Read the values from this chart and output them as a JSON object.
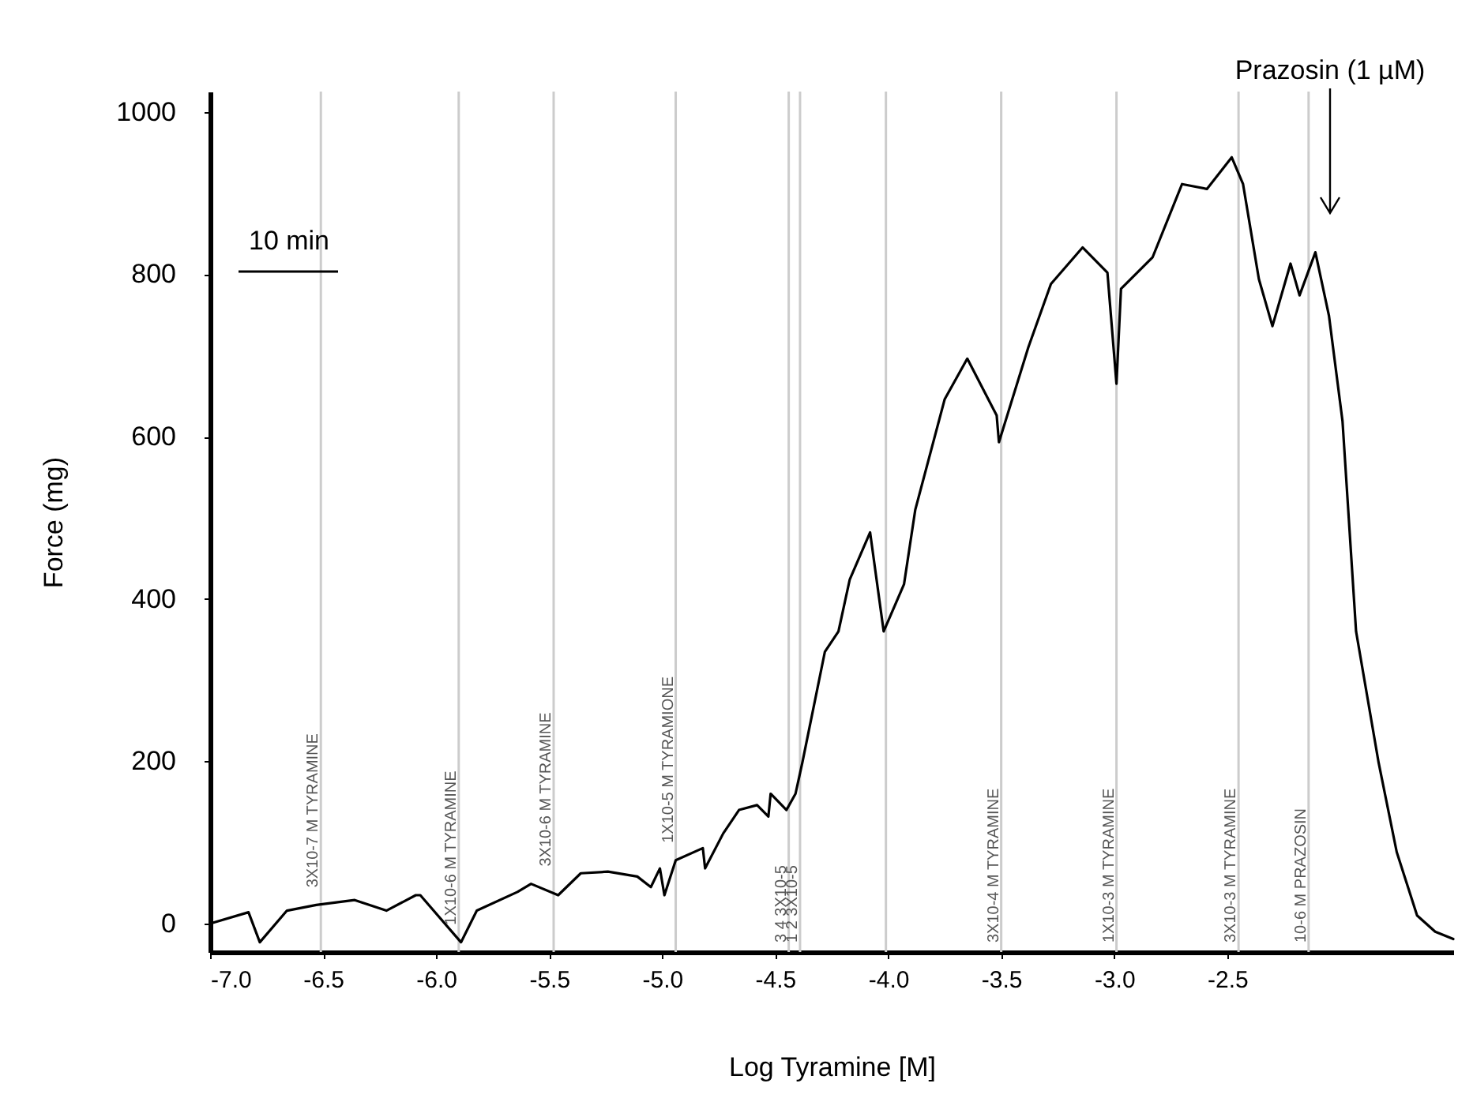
{
  "chart_data": {
    "type": "line",
    "xlabel": "Log Tyramine [M]",
    "ylabel": "Force (mg)",
    "xlim": [
      -7.0,
      -1.5
    ],
    "ylim": [
      -35,
      1025
    ],
    "xticks": [
      {
        "value": -7.0,
        "label": "-7.0"
      },
      {
        "value": -6.5,
        "label": "-6.5"
      },
      {
        "value": -6.0,
        "label": "-6.0"
      },
      {
        "value": -5.5,
        "label": "-5.5"
      },
      {
        "value": -5.0,
        "label": "-5.0"
      },
      {
        "value": -4.5,
        "label": "-4.5"
      },
      {
        "value": -4.0,
        "label": "-4.0"
      },
      {
        "value": -3.5,
        "label": "-3.5"
      },
      {
        "value": -3.0,
        "label": "-3.0"
      },
      {
        "value": -2.5,
        "label": "-2.5"
      }
    ],
    "yticks": [
      0,
      200,
      400,
      600,
      800,
      1000
    ],
    "grid": false,
    "series": [
      {
        "color": "#000000",
        "x": [
          -7.0,
          -6.83,
          -6.78,
          -6.66,
          -6.53,
          -6.36,
          -6.22,
          -6.09,
          -6.07,
          -5.89,
          -5.82,
          -5.64,
          -5.58,
          -5.46,
          -5.36,
          -5.24,
          -5.11,
          -5.05,
          -5.01,
          -4.99,
          -4.94,
          -4.82,
          -4.81,
          -4.73,
          -4.66,
          -4.58,
          -4.53,
          -4.52,
          -4.45,
          -4.41,
          -4.38,
          -4.28,
          -4.22,
          -4.17,
          -4.08,
          -4.02,
          -3.93,
          -3.88,
          -3.75,
          -3.65,
          -3.52,
          -3.51,
          -3.38,
          -3.28,
          -3.14,
          -3.03,
          -2.99,
          -2.97,
          -2.83,
          -2.7,
          -2.59,
          -2.48,
          -2.43,
          -2.36,
          -2.3,
          -2.22,
          -2.18,
          -2.11,
          -2.05,
          -1.99,
          -1.93,
          -1.83,
          -1.75,
          -1.66,
          -1.58,
          -1.5
        ],
        "values": [
          0,
          14,
          -23,
          16,
          23,
          29,
          16,
          35,
          35,
          -23,
          16,
          39,
          49,
          35,
          62,
          64,
          58,
          45,
          68,
          35,
          78,
          93,
          68,
          111,
          140,
          146,
          132,
          160,
          140,
          160,
          198,
          335,
          360,
          424,
          482,
          360,
          418,
          510,
          646,
          696,
          626,
          593,
          710,
          788,
          833,
          802,
          665,
          782,
          821,
          911,
          905,
          944,
          911,
          794,
          736,
          813,
          774,
          827,
          749,
          619,
          360,
          198,
          88,
          10,
          -10,
          -19
        ]
      }
    ],
    "ref_lines": [
      {
        "axis": "x",
        "value": -6.51,
        "label": "3X10-7 M TYRAMINE",
        "color": "#cccccc"
      },
      {
        "axis": "x",
        "value": -5.9,
        "label": "1X10-6 M TYRAMINE",
        "color": "#cccccc"
      },
      {
        "axis": "x",
        "value": -5.48,
        "label": "3X10-6 M TYRAMINE",
        "color": "#cccccc"
      },
      {
        "axis": "x",
        "value": -4.94,
        "label": "1X10-5 M TYRAMIONE",
        "color": "#cccccc"
      },
      {
        "axis": "x",
        "value": -4.44,
        "label": "3 4 3X10-5",
        "color": "#cccccc"
      },
      {
        "axis": "x",
        "value": -4.39,
        "label": "1 2 3X10-5",
        "color": "#cccccc"
      },
      {
        "axis": "x",
        "value": -4.01,
        "label": null,
        "color": "#cccccc"
      },
      {
        "axis": "x",
        "value": -3.5,
        "label": "3X10-4 M TYRAMINE",
        "color": "#cccccc"
      },
      {
        "axis": "x",
        "value": -2.99,
        "label": "1X10-3 M TYRAMINE",
        "color": "#cccccc"
      },
      {
        "axis": "x",
        "value": -2.45,
        "label": "3X10-3 M TYRAMINE",
        "color": "#cccccc"
      },
      {
        "axis": "x",
        "value": -2.14,
        "label": "10-6 M PRAZOSIN",
        "color": "#cccccc"
      }
    ],
    "annotations": [
      "10 min",
      "Prazosin (1 µM)"
    ]
  }
}
